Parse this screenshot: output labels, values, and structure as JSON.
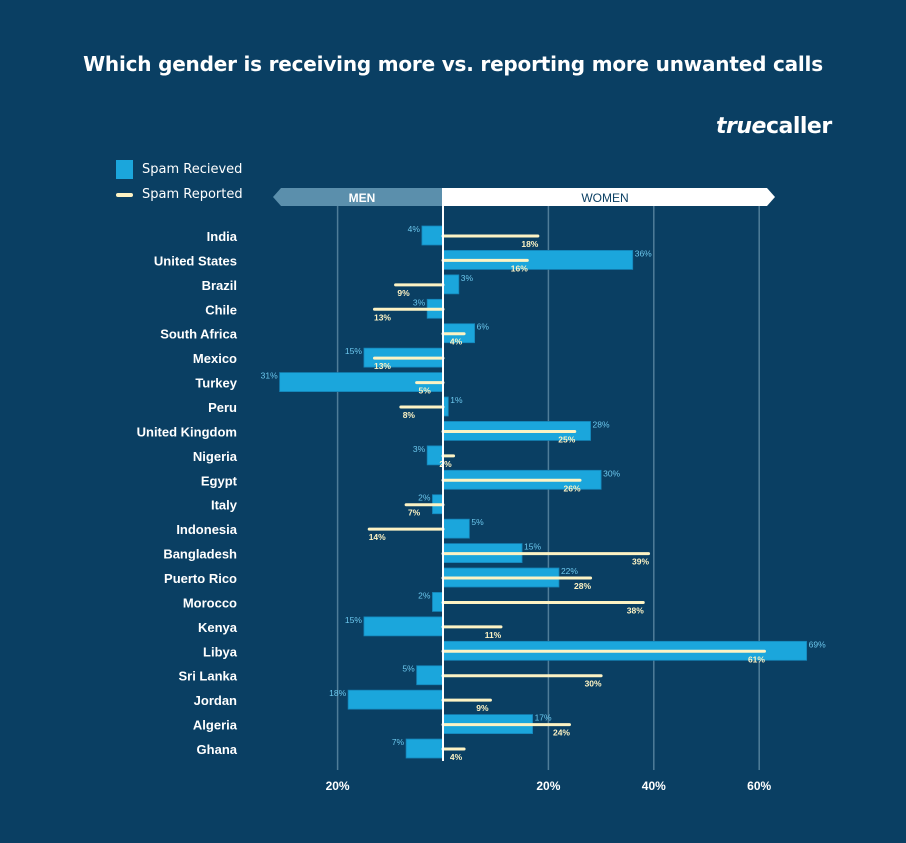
{
  "title": "Which gender is receiving more vs. reporting more unwanted calls",
  "logo": "truecaller",
  "colors": {
    "background": "#0a3f63",
    "received": "#1ba6dc",
    "reported": "#fdf3c4",
    "men_header": "#5b8fac",
    "women_header": "#ffffff",
    "grid": "#4f7d99"
  },
  "chart_data": {
    "type": "bar",
    "orientation": "horizontal-diverging",
    "title": "Which gender is receiving more vs. reporting more unwanted calls",
    "header_left": "MEN",
    "header_right": "WOMEN",
    "legend_placement": "top-left",
    "grid": true,
    "x_ticks": [
      {
        "value": -20,
        "label": "20%"
      },
      {
        "value": 20,
        "label": "20%"
      },
      {
        "value": 40,
        "label": "40%"
      },
      {
        "value": 60,
        "label": "60%"
      }
    ],
    "xlim": [
      -30,
      70
    ],
    "categories": [
      "India",
      "United States",
      "Brazil",
      "Chile",
      "South Africa",
      "Mexico",
      "Turkey",
      "Peru",
      "United Kingdom",
      "Nigeria",
      "Egypt",
      "Italy",
      "Indonesia",
      "Bangladesh",
      "Puerto Rico",
      "Morocco",
      "Kenya",
      "Libya",
      "Sri Lanka",
      "Jordan",
      "Algeria",
      "Ghana"
    ],
    "series": [
      {
        "name": "Spam Recieved",
        "style": "bar",
        "values": [
          -4,
          36,
          3,
          -3,
          6,
          -15,
          -31,
          1,
          28,
          -3,
          30,
          -2,
          5,
          15,
          22,
          -2,
          -15,
          69,
          -5,
          -18,
          17,
          -7
        ]
      },
      {
        "name": "Spam Reported",
        "style": "line",
        "values": [
          18,
          16,
          -9,
          -13,
          4,
          -13,
          -5,
          -8,
          25,
          2,
          26,
          -7,
          -14,
          39,
          28,
          38,
          11,
          61,
          30,
          9,
          24,
          4
        ]
      }
    ],
    "note": "negative values = men side (left), positive = women side (right); labels show absolute percentage"
  }
}
